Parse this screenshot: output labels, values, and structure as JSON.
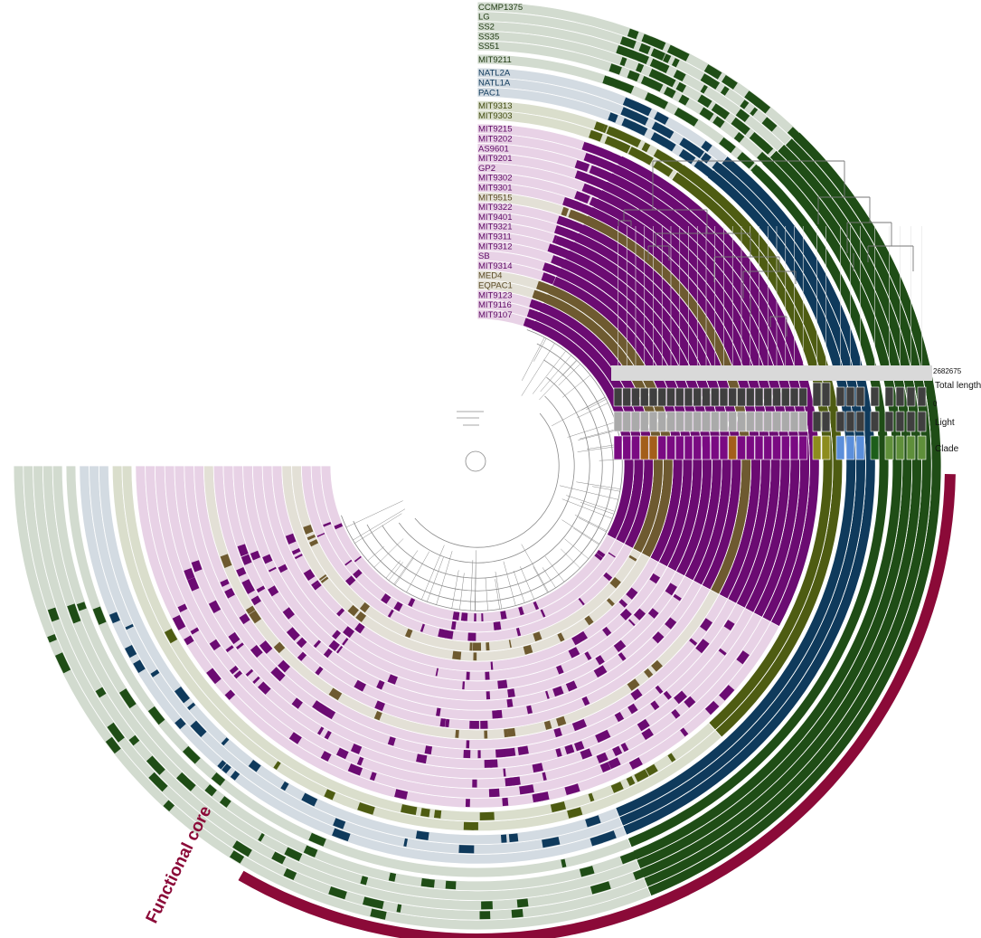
{
  "genomes": [
    {
      "name": "CCMP1375",
      "group": "ss"
    },
    {
      "name": "LG",
      "group": "ss"
    },
    {
      "name": "SS2",
      "group": "ss"
    },
    {
      "name": "SS35",
      "group": "ss"
    },
    {
      "name": "SS51",
      "group": "ss"
    },
    {
      "name": "MIT9211",
      "group": "ss",
      "gap": true
    },
    {
      "name": "NATL2A",
      "group": "natl",
      "gap": true
    },
    {
      "name": "NATL1A",
      "group": "natl"
    },
    {
      "name": "PAC1",
      "group": "natl"
    },
    {
      "name": "MIT9313",
      "group": "olive",
      "gap": true
    },
    {
      "name": "MIT9303",
      "group": "olive"
    },
    {
      "name": "MIT9215",
      "group": "hl",
      "gap": true
    },
    {
      "name": "MIT9202",
      "group": "hl"
    },
    {
      "name": "AS9601",
      "group": "hl"
    },
    {
      "name": "MIT9201",
      "group": "hl"
    },
    {
      "name": "GP2",
      "group": "hl"
    },
    {
      "name": "MIT9302",
      "group": "hl"
    },
    {
      "name": "MIT9301",
      "group": "hl"
    },
    {
      "name": "MIT9515",
      "group": "med"
    },
    {
      "name": "MIT9322",
      "group": "hl"
    },
    {
      "name": "MIT9401",
      "group": "hl"
    },
    {
      "name": "MIT9321",
      "group": "hl"
    },
    {
      "name": "MIT9311",
      "group": "hl"
    },
    {
      "name": "MIT9312",
      "group": "hl"
    },
    {
      "name": "SB",
      "group": "hl"
    },
    {
      "name": "MIT9314",
      "group": "hl"
    },
    {
      "name": "MED4",
      "group": "med"
    },
    {
      "name": "EQPAC1",
      "group": "med"
    },
    {
      "name": "MIT9123",
      "group": "hl"
    },
    {
      "name": "MIT9116",
      "group": "hl"
    },
    {
      "name": "MIT9107",
      "group": "hl"
    }
  ],
  "group_colors": {
    "ss": {
      "fill": "#1f4d16",
      "light": "#d2dbcf",
      "label": "#1f3a12"
    },
    "natl": {
      "fill": "#0f3a5c",
      "light": "#d3dbe2",
      "label": "#0f3a5c"
    },
    "olive": {
      "fill": "#4e5c12",
      "light": "#dadecc",
      "label": "#3f4a0e"
    },
    "hl": {
      "fill": "#6b0b72",
      "light": "#e8d2e6",
      "label": "#5e0a66"
    },
    "med": {
      "fill": "#6e5a30",
      "light": "#e3e0d6",
      "label": "#5a4a24"
    }
  },
  "metadata_layers": {
    "total_length": {
      "label": "Total length",
      "max": "2682675",
      "min": "0"
    },
    "light": {
      "label": "Light"
    },
    "clade": {
      "label": "Clade"
    }
  },
  "functional_core": {
    "label": "Functional core",
    "color": "#8b0a38"
  },
  "colors": {
    "dendrogram": "#8a8a8a",
    "bar_dark": "#3f3f3f",
    "bar_light": "#aaaaaa",
    "bg_panel": "#d9d9d9"
  }
}
